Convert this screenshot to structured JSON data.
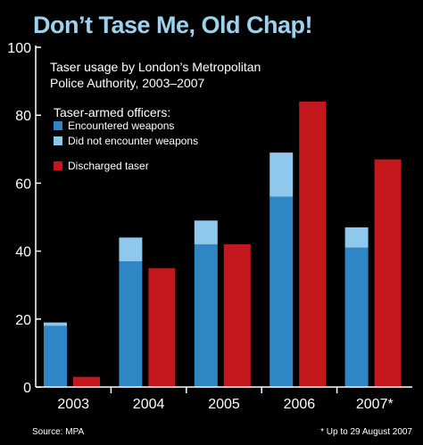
{
  "chart_data": {
    "type": "bar",
    "title": "Don’t Tase Me, Old Chap!",
    "subtitle_lines": [
      "Taser usage by London’s Metropolitan",
      "Police Authority, 2003–2007"
    ],
    "categories": [
      "2003",
      "2004",
      "2005",
      "2006",
      "2007*"
    ],
    "ylim": [
      0,
      100
    ],
    "yticks": [
      0,
      20,
      40,
      60,
      80,
      100
    ],
    "grid": false,
    "legend_position": "top-left",
    "legend_heading": "Taser-armed officers:",
    "series": [
      {
        "name": "Encountered weapons",
        "values": [
          18,
          37,
          42,
          56,
          41
        ],
        "color": "#2f86c4",
        "stack": "officers"
      },
      {
        "name": "Did not encounter weapons",
        "values": [
          1,
          7,
          7,
          13,
          6
        ],
        "color": "#8ec8ec",
        "stack": "officers"
      },
      {
        "name": "Discharged taser",
        "values": [
          3,
          35,
          42,
          84,
          67
        ],
        "color": "#c4171c",
        "stack": "discharged"
      }
    ],
    "source": "Source: MPA",
    "footnote": "* Up to 29 August 2007"
  }
}
